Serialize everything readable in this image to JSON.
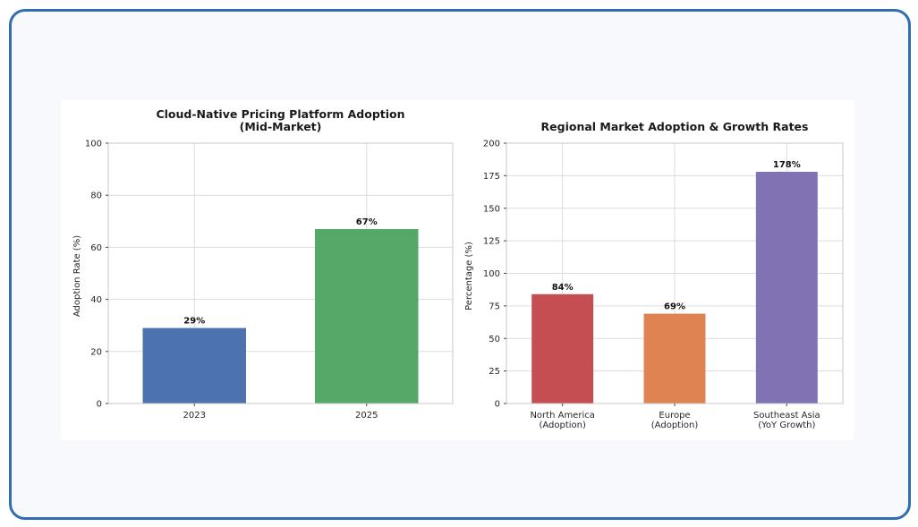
{
  "chart_data": [
    {
      "type": "bar",
      "title": [
        "Cloud-Native Pricing Platform Adoption",
        "(Mid-Market)"
      ],
      "xlabel": "",
      "ylabel": "Adoption Rate (%)",
      "categories": [
        [
          "2023"
        ],
        [
          "2025"
        ]
      ],
      "values": [
        29,
        67
      ],
      "value_labels": [
        "29%",
        "67%"
      ],
      "colors": [
        "#4c72b0",
        "#55a868"
      ],
      "ylim": [
        0,
        100
      ],
      "yticks": [
        0,
        20,
        40,
        60,
        80,
        100
      ],
      "grid": true,
      "legend": "none"
    },
    {
      "type": "bar",
      "title": [
        "Regional Market Adoption & Growth Rates"
      ],
      "xlabel": "",
      "ylabel": "Percentage (%)",
      "categories": [
        [
          "North America",
          "(Adoption)"
        ],
        [
          "Europe",
          "(Adoption)"
        ],
        [
          "Southeast Asia",
          "(YoY Growth)"
        ]
      ],
      "values": [
        84,
        69,
        178
      ],
      "value_labels": [
        "84%",
        "69%",
        "178%"
      ],
      "colors": [
        "#c44e52",
        "#dd8452",
        "#8172b3"
      ],
      "ylim": [
        0,
        200
      ],
      "yticks": [
        0,
        25,
        50,
        75,
        100,
        125,
        150,
        175,
        200
      ],
      "grid": true,
      "legend": "none"
    }
  ]
}
